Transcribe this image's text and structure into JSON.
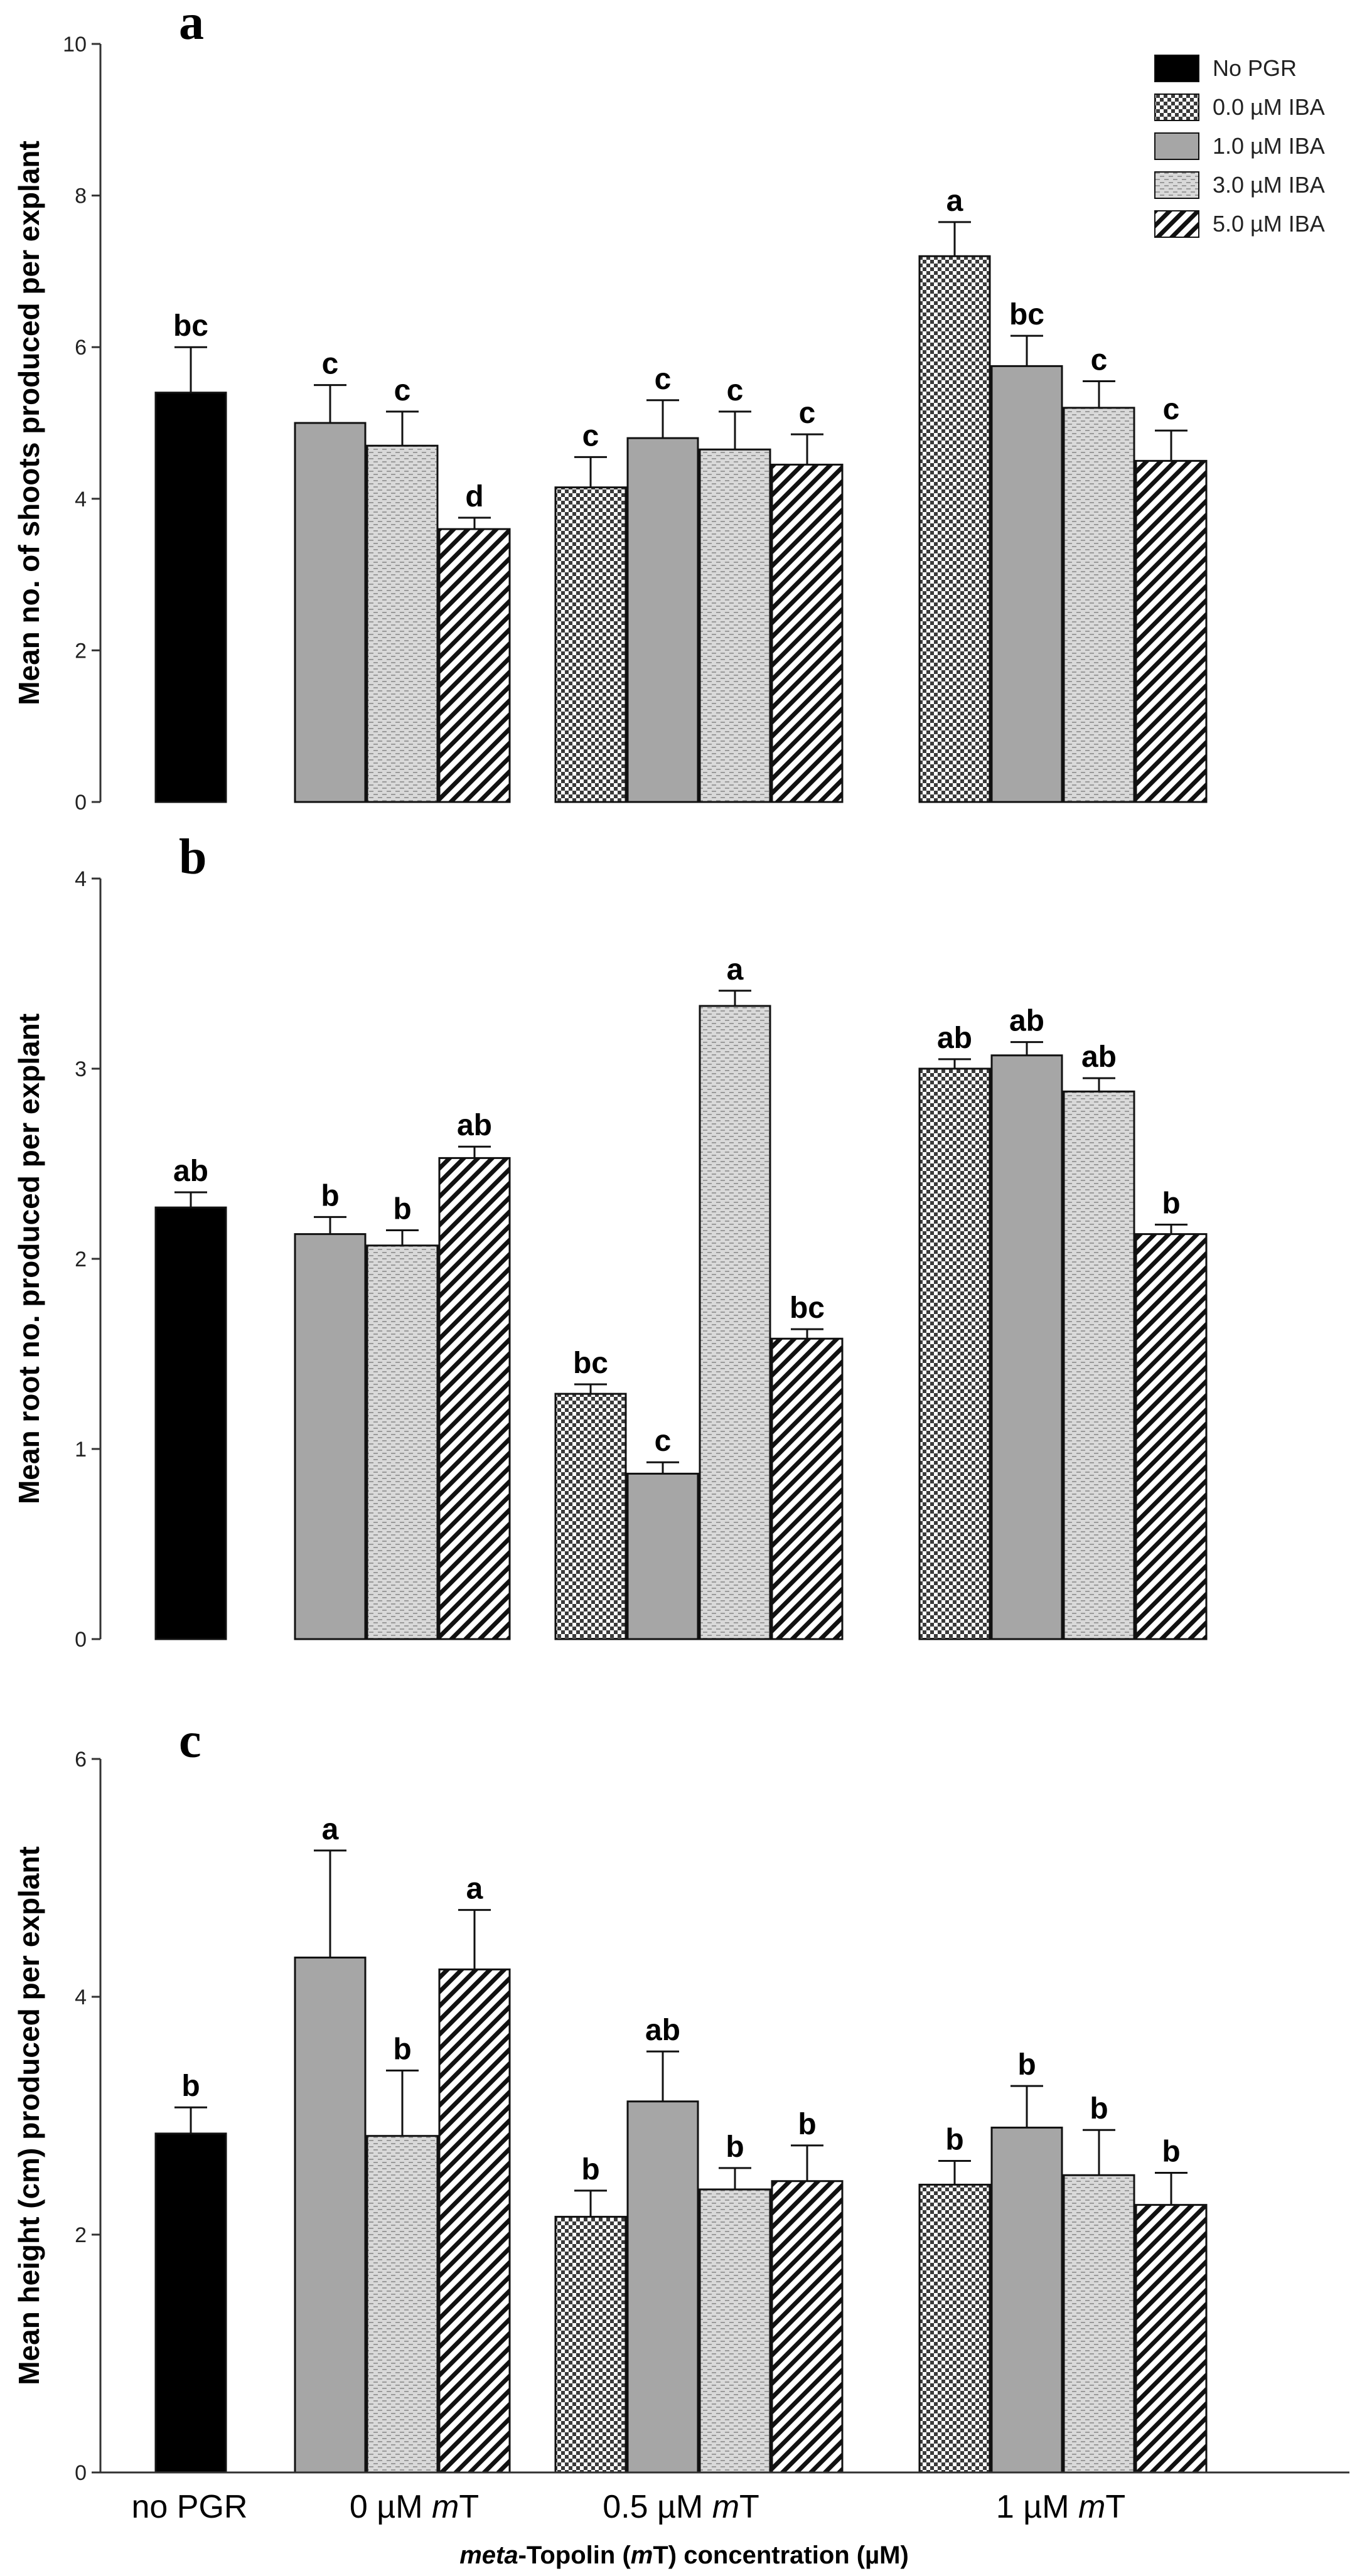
{
  "chart_data": [
    {
      "panel": "a",
      "type": "bar",
      "ylabel": "Mean no. of shoots produced per explant",
      "ylim": [
        0,
        10
      ],
      "yticks": [
        0,
        2,
        4,
        6,
        8,
        10
      ],
      "groups": [
        {
          "category": "no PGR",
          "bars": [
            {
              "series": "No PGR",
              "value": 5.4,
              "error": 0.6,
              "letter": "bc"
            }
          ]
        },
        {
          "category": "0 µM mT",
          "bars": [
            {
              "series": "1.0 µM IBA",
              "value": 5.0,
              "error": 0.5,
              "letter": "c"
            },
            {
              "series": "3.0 µM IBA",
              "value": 4.7,
              "error": 0.45,
              "letter": "c"
            },
            {
              "series": "5.0 µM IBA",
              "value": 3.6,
              "error": 0.15,
              "letter": "d"
            }
          ]
        },
        {
          "category": "0.5 µM mT",
          "bars": [
            {
              "series": "0.0 µM IBA",
              "value": 4.15,
              "error": 0.4,
              "letter": "c"
            },
            {
              "series": "1.0 µM IBA",
              "value": 4.8,
              "error": 0.5,
              "letter": "c"
            },
            {
              "series": "3.0 µM IBA",
              "value": 4.65,
              "error": 0.5,
              "letter": "c"
            },
            {
              "series": "5.0 µM IBA",
              "value": 4.45,
              "error": 0.4,
              "letter": "c"
            }
          ]
        },
        {
          "category": "1 µM mT",
          "bars": [
            {
              "series": "0.0 µM IBA",
              "value": 7.2,
              "error": 0.45,
              "letter": "a"
            },
            {
              "series": "1.0 µM IBA",
              "value": 5.75,
              "error": 0.4,
              "letter": "bc"
            },
            {
              "series": "3.0 µM IBA",
              "value": 5.2,
              "error": 0.35,
              "letter": "c"
            },
            {
              "series": "5.0 µM IBA",
              "value": 4.5,
              "error": 0.4,
              "letter": "c"
            }
          ]
        }
      ]
    },
    {
      "panel": "b",
      "type": "bar",
      "ylabel": "Mean root no. produced per explant",
      "ylim": [
        0,
        4
      ],
      "yticks": [
        0,
        1,
        2,
        3,
        4
      ],
      "groups": [
        {
          "category": "no PGR",
          "bars": [
            {
              "series": "No PGR",
              "value": 2.27,
              "error": 0.08,
              "letter": "ab"
            }
          ]
        },
        {
          "category": "0 µM mT",
          "bars": [
            {
              "series": "1.0 µM IBA",
              "value": 2.13,
              "error": 0.09,
              "letter": "b"
            },
            {
              "series": "3.0 µM IBA",
              "value": 2.07,
              "error": 0.08,
              "letter": "b"
            },
            {
              "series": "5.0 µM IBA",
              "value": 2.53,
              "error": 0.06,
              "letter": "ab"
            }
          ]
        },
        {
          "category": "0.5 µM mT",
          "bars": [
            {
              "series": "0.0 µM IBA",
              "value": 1.29,
              "error": 0.05,
              "letter": "bc"
            },
            {
              "series": "1.0 µM IBA",
              "value": 0.87,
              "error": 0.06,
              "letter": "c"
            },
            {
              "series": "3.0 µM IBA",
              "value": 3.33,
              "error": 0.08,
              "letter": "a"
            },
            {
              "series": "5.0 µM IBA",
              "value": 1.58,
              "error": 0.05,
              "letter": "bc"
            }
          ]
        },
        {
          "category": "1 µM mT",
          "bars": [
            {
              "series": "0.0 µM IBA",
              "value": 3.0,
              "error": 0.05,
              "letter": "ab"
            },
            {
              "series": "1.0 µM IBA",
              "value": 3.07,
              "error": 0.07,
              "letter": "ab"
            },
            {
              "series": "3.0 µM IBA",
              "value": 2.88,
              "error": 0.07,
              "letter": "ab"
            },
            {
              "series": "5.0 µM IBA",
              "value": 2.13,
              "error": 0.05,
              "letter": "b"
            }
          ]
        }
      ]
    },
    {
      "panel": "c",
      "type": "bar",
      "ylabel": "Mean height (cm) produced per explant",
      "ylim": [
        0,
        6
      ],
      "yticks": [
        0,
        2,
        4,
        6
      ],
      "groups": [
        {
          "category": "no PGR",
          "bars": [
            {
              "series": "No PGR",
              "value": 2.85,
              "error": 0.22,
              "letter": "b"
            }
          ]
        },
        {
          "category": "0 µM mT",
          "bars": [
            {
              "series": "1.0 µM IBA",
              "value": 4.33,
              "error": 0.9,
              "letter": "a"
            },
            {
              "series": "3.0 µM IBA",
              "value": 2.83,
              "error": 0.55,
              "letter": "b"
            },
            {
              "series": "5.0 µM IBA",
              "value": 4.23,
              "error": 0.5,
              "letter": "a"
            }
          ]
        },
        {
          "category": "0.5 µM mT",
          "bars": [
            {
              "series": "0.0 µM IBA",
              "value": 2.15,
              "error": 0.22,
              "letter": "b"
            },
            {
              "series": "1.0 µM IBA",
              "value": 3.12,
              "error": 0.42,
              "letter": "ab"
            },
            {
              "series": "3.0 µM IBA",
              "value": 2.38,
              "error": 0.18,
              "letter": "b"
            },
            {
              "series": "5.0 µM IBA",
              "value": 2.45,
              "error": 0.3,
              "letter": "b"
            }
          ]
        },
        {
          "category": "1 µM mT",
          "bars": [
            {
              "series": "0.0 µM IBA",
              "value": 2.42,
              "error": 0.2,
              "letter": "b"
            },
            {
              "series": "1.0 µM IBA",
              "value": 2.9,
              "error": 0.35,
              "letter": "b"
            },
            {
              "series": "3.0 µM IBA",
              "value": 2.5,
              "error": 0.38,
              "letter": "b"
            },
            {
              "series": "5.0 µM IBA",
              "value": 2.25,
              "error": 0.27,
              "letter": "b"
            }
          ]
        }
      ]
    }
  ],
  "legend": {
    "position": "top-right",
    "items": [
      "No PGR",
      "0.0 µM IBA",
      "1.0 µM IBA",
      "3.0 µM IBA",
      "5.0 µM IBA"
    ]
  },
  "x_categories": [
    {
      "prefix": "no PGR",
      "italic": "",
      "suffix": ""
    },
    {
      "prefix": "0 µM ",
      "italic": "m",
      "suffix": "T"
    },
    {
      "prefix": "0.5 µM ",
      "italic": "m",
      "suffix": "T"
    },
    {
      "prefix": "1 µM ",
      "italic": "m",
      "suffix": "T"
    }
  ],
  "x_title": {
    "part1": "meta",
    "part2": "-Topolin (",
    "part3": "m",
    "part4": "T) concentration (µM)"
  }
}
